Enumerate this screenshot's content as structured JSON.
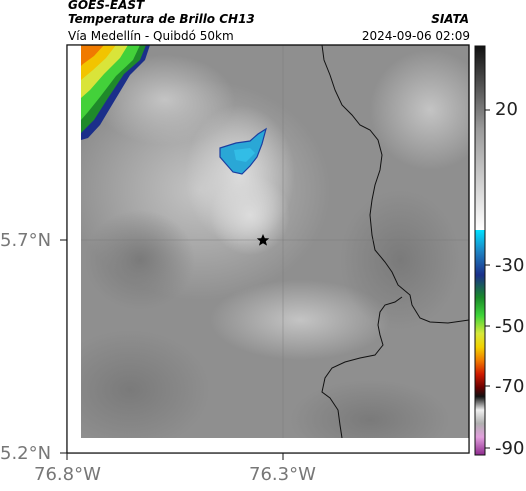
{
  "header": {
    "satellite": "GOES-EAST",
    "title": "Temperatura de Brillo CH13",
    "subtitle": "Vía Medellín - Quibdó 50km",
    "organization": "SIATA",
    "datetime": "2024-09-06 02:09"
  },
  "axes": {
    "y_ticks": [
      {
        "value": 5.7,
        "label": "5.7°N"
      },
      {
        "value": 5.2,
        "label": "5.2°N"
      }
    ],
    "x_ticks": [
      {
        "value": -76.8,
        "label": "76.8°W"
      },
      {
        "value": -76.3,
        "label": "76.3°W"
      }
    ]
  },
  "colorbar": {
    "labels": [
      {
        "value": 20,
        "label": "20"
      },
      {
        "value": -30,
        "label": "-30"
      },
      {
        "value": -50,
        "label": "-50"
      },
      {
        "value": -70,
        "label": "-70"
      },
      {
        "value": -90,
        "label": "-90"
      }
    ]
  },
  "marker": {
    "type": "star",
    "lat": 5.7,
    "lon": -76.35
  },
  "colors": {
    "land_gray": "#8f8f8f",
    "light_cloud": "#cfcfcf",
    "cold_cloud": "#29a8d8",
    "border": "#111111"
  }
}
